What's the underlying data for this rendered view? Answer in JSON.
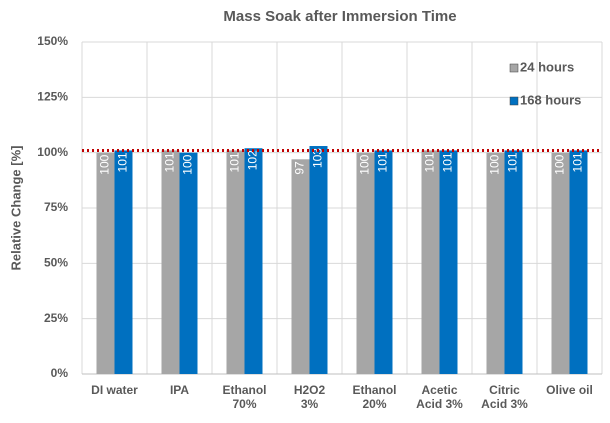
{
  "chart_data": {
    "type": "bar",
    "title": "Mass Soak after Immersion Time",
    "y_label": "Relative Change [%]",
    "categories": [
      "DI water",
      "IPA",
      "Ethanol 70%",
      "H2O2 3%",
      "Ethanol 20%",
      "Acetic Acid 3%",
      "Citric Acid 3%",
      "Olive oil"
    ],
    "series": [
      {
        "name": "24 hours",
        "color": "#a6a6a6",
        "values": [
          100,
          101,
          101,
          97,
          100,
          101,
          100,
          100
        ]
      },
      {
        "name": "168 hours",
        "color": "#0070c0",
        "values": [
          101,
          100,
          102,
          103,
          101,
          101,
          101,
          101
        ]
      }
    ],
    "ylim": [
      0,
      150
    ],
    "yticks": [
      {
        "value": 0,
        "label": "0%"
      },
      {
        "value": 25,
        "label": "25%"
      },
      {
        "value": 50,
        "label": "50%"
      },
      {
        "value": 75,
        "label": "75%"
      },
      {
        "value": 100,
        "label": "100%"
      },
      {
        "value": 125,
        "label": "125%"
      },
      {
        "value": 150,
        "label": "150%"
      }
    ],
    "grid": true,
    "legend": "upper right",
    "reference_line": {
      "value": 101,
      "color": "#c00000"
    }
  }
}
